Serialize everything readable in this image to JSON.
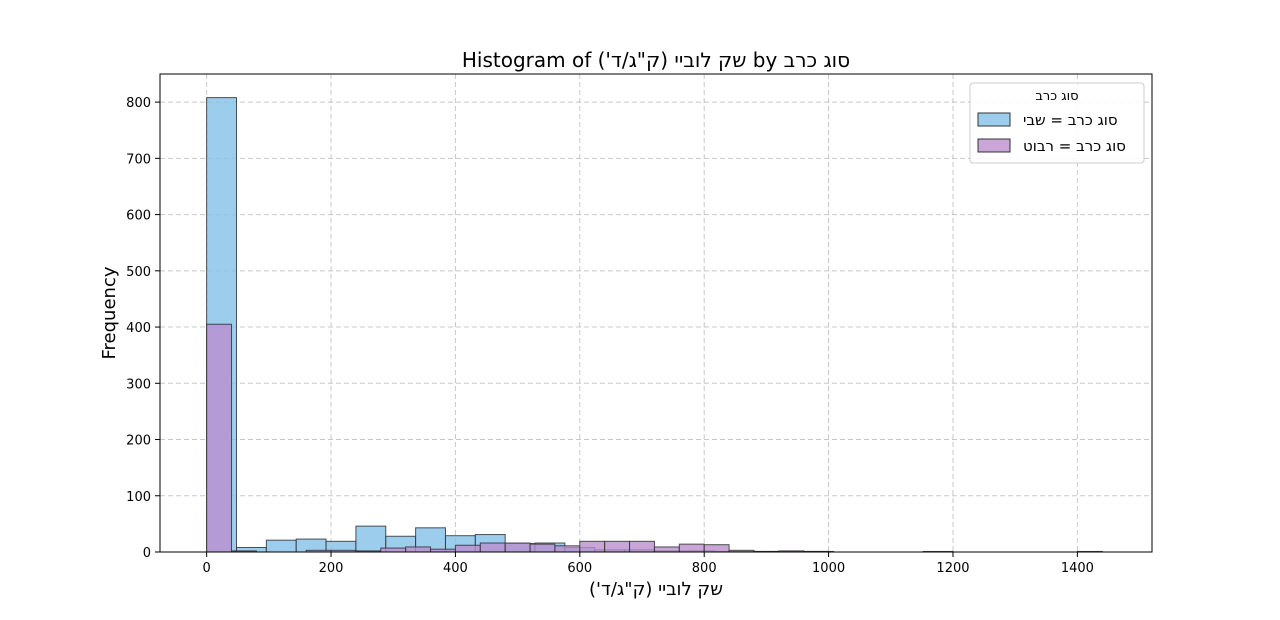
{
  "chart_data": {
    "type": "bar",
    "title": "Histogram of שק לוביי (ק\"ג/ד') by סוג כרב",
    "xlabel": "שק לוביי (ק\"ג/ד')",
    "ylabel": "Frequency",
    "xlim": [
      -75,
      1520
    ],
    "ylim": [
      0,
      850
    ],
    "xticks": [
      0,
      200,
      400,
      600,
      800,
      1000,
      1200,
      1400
    ],
    "yticks": [
      0,
      100,
      200,
      300,
      400,
      500,
      600,
      700,
      800
    ],
    "grid": true,
    "legend": {
      "title": "סוג כרב",
      "placement": "top-right"
    },
    "series": [
      {
        "name": "סוג כרב = שבי",
        "color": "#85c1e9",
        "bins": [
          {
            "x0": 0,
            "x1": 48,
            "count": 808
          },
          {
            "x0": 48,
            "x1": 96,
            "count": 8
          },
          {
            "x0": 96,
            "x1": 144,
            "count": 21
          },
          {
            "x0": 144,
            "x1": 192,
            "count": 23
          },
          {
            "x0": 192,
            "x1": 240,
            "count": 19
          },
          {
            "x0": 240,
            "x1": 288,
            "count": 46
          },
          {
            "x0": 288,
            "x1": 336,
            "count": 28
          },
          {
            "x0": 336,
            "x1": 384,
            "count": 43
          },
          {
            "x0": 384,
            "x1": 432,
            "count": 29
          },
          {
            "x0": 432,
            "x1": 480,
            "count": 31
          },
          {
            "x0": 480,
            "x1": 528,
            "count": 15
          },
          {
            "x0": 528,
            "x1": 576,
            "count": 16
          },
          {
            "x0": 576,
            "x1": 624,
            "count": 8
          },
          {
            "x0": 624,
            "x1": 672,
            "count": 4
          },
          {
            "x0": 672,
            "x1": 720,
            "count": 4
          },
          {
            "x0": 720,
            "x1": 768,
            "count": 2
          },
          {
            "x0": 768,
            "x1": 816,
            "count": 2
          },
          {
            "x0": 816,
            "x1": 864,
            "count": 1
          },
          {
            "x0": 864,
            "x1": 912,
            "count": 1
          },
          {
            "x0": 912,
            "x1": 960,
            "count": 1
          },
          {
            "x0": 960,
            "x1": 1008,
            "count": 1
          },
          {
            "x0": 1152,
            "x1": 1200,
            "count": 1
          }
        ]
      },
      {
        "name": "סוג כרב = רבוט",
        "color": "#bb8fce",
        "bins": [
          {
            "x0": 0,
            "x1": 40,
            "count": 405
          },
          {
            "x0": 40,
            "x1": 80,
            "count": 2
          },
          {
            "x0": 160,
            "x1": 200,
            "count": 3
          },
          {
            "x0": 200,
            "x1": 240,
            "count": 3
          },
          {
            "x0": 240,
            "x1": 280,
            "count": 2
          },
          {
            "x0": 280,
            "x1": 320,
            "count": 7
          },
          {
            "x0": 320,
            "x1": 360,
            "count": 9
          },
          {
            "x0": 360,
            "x1": 400,
            "count": 5
          },
          {
            "x0": 400,
            "x1": 440,
            "count": 12
          },
          {
            "x0": 440,
            "x1": 480,
            "count": 16
          },
          {
            "x0": 480,
            "x1": 520,
            "count": 16
          },
          {
            "x0": 520,
            "x1": 560,
            "count": 14
          },
          {
            "x0": 560,
            "x1": 600,
            "count": 11
          },
          {
            "x0": 600,
            "x1": 640,
            "count": 19
          },
          {
            "x0": 640,
            "x1": 680,
            "count": 19
          },
          {
            "x0": 680,
            "x1": 720,
            "count": 19
          },
          {
            "x0": 720,
            "x1": 760,
            "count": 9
          },
          {
            "x0": 760,
            "x1": 800,
            "count": 14
          },
          {
            "x0": 800,
            "x1": 840,
            "count": 13
          },
          {
            "x0": 840,
            "x1": 880,
            "count": 3
          },
          {
            "x0": 880,
            "x1": 920,
            "count": 1
          },
          {
            "x0": 920,
            "x1": 960,
            "count": 2
          },
          {
            "x0": 960,
            "x1": 1000,
            "count": 1
          },
          {
            "x0": 1400,
            "x1": 1440,
            "count": 1
          }
        ]
      }
    ]
  }
}
